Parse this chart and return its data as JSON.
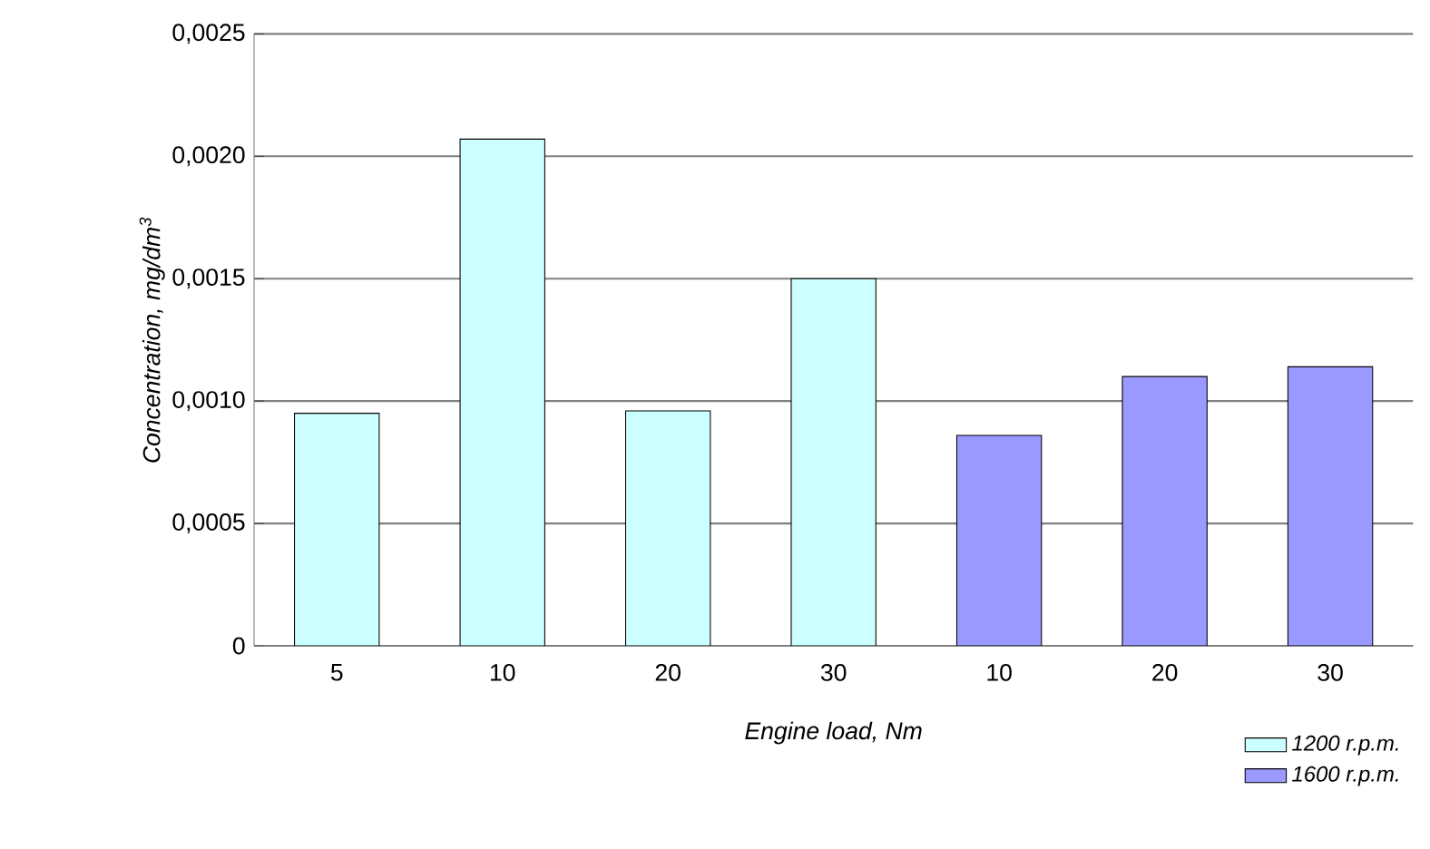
{
  "chart_data": {
    "type": "bar",
    "xlabel": "Engine load, Nm",
    "ylabel": "Concentration, mg/dm$^{3}$",
    "categories": [
      "5",
      "10",
      "20",
      "30",
      "10",
      "20",
      "30"
    ],
    "series": [
      {
        "name": "1200 r.p.m.",
        "color": "#ccffff",
        "values": [
          0.00095,
          0.00207,
          0.00096,
          0.0015,
          null,
          null,
          null
        ]
      },
      {
        "name": "1600 r.p.m.",
        "color": "#9999ff",
        "values": [
          null,
          null,
          null,
          null,
          0.00086,
          0.0011,
          0.00114
        ]
      }
    ],
    "ylim": [
      0,
      0.0025
    ],
    "yticks": [
      {
        "value": 0,
        "label": "0"
      },
      {
        "value": 0.0005,
        "label": "0,0005"
      },
      {
        "value": 0.001,
        "label": "0,0010"
      },
      {
        "value": 0.0015,
        "label": "0,0015"
      },
      {
        "value": 0.002,
        "label": "0,0020"
      },
      {
        "value": 0.0025,
        "label": "0,0025"
      }
    ],
    "grid": "y",
    "legend": "bottom right"
  }
}
